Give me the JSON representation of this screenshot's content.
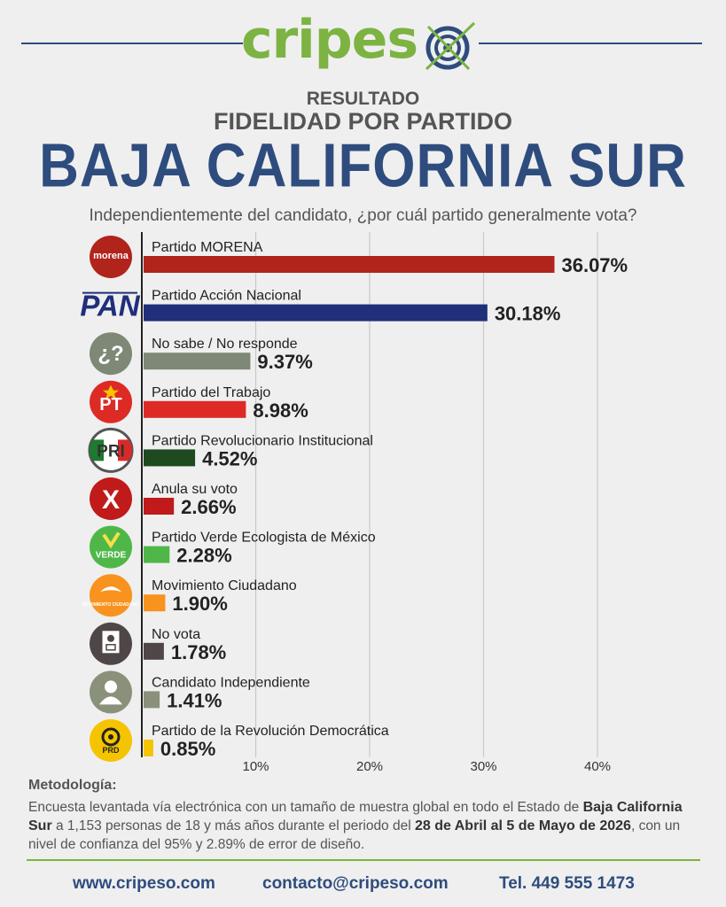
{
  "header": {
    "brand_a": "cripes",
    "brand_b": "o",
    "resultado": "RESULTADO",
    "subtitle": "FIDELIDAD POR PARTIDO",
    "state": "BAJA CALIFORNIA SUR",
    "question": "Independientemente del candidato, ¿por cuál partido generalmente vota?"
  },
  "chart_data": {
    "type": "bar",
    "orientation": "horizontal",
    "categories": [
      "Partido MORENA",
      "Partido Acción Nacional",
      "No sabe / No responde",
      "Partido del Trabajo",
      "Partido Revolucionario Institucional",
      "Anula su voto",
      "Partido Verde Ecologista de México",
      "Movimiento Ciudadano",
      "No vota",
      "Candidato Independiente",
      "Partido de la Revolución Democrática"
    ],
    "values": [
      36.07,
      30.18,
      9.37,
      8.98,
      4.52,
      2.66,
      2.28,
      1.9,
      1.78,
      1.41,
      0.85
    ],
    "value_labels": [
      "36.07%",
      "30.18%",
      "9.37%",
      "8.98%",
      "4.52%",
      "2.66%",
      "2.28%",
      "1.90%",
      "1.78%",
      "1.41%",
      "0.85%"
    ],
    "colors": [
      "#b0241c",
      "#1f2f7a",
      "#7d8877",
      "#dd2a25",
      "#1d4a1f",
      "#c01a1a",
      "#4fb748",
      "#f7931e",
      "#4f4647",
      "#89917a",
      "#f5c400"
    ],
    "xlim": [
      0,
      40
    ],
    "xticks": [
      10,
      20,
      30,
      40
    ],
    "xtick_labels": [
      "10%",
      "20%",
      "30%",
      "40%"
    ],
    "grid": true
  },
  "logos": [
    {
      "icon": "morena-logo-icon",
      "text": "morena",
      "color": "#b0241c"
    },
    {
      "icon": "pan-logo-icon",
      "text": "PAN",
      "color": "#1f2f7a"
    },
    {
      "icon": "question-logo-icon",
      "text": "¿?",
      "color": "#7d8877"
    },
    {
      "icon": "pt-logo-icon",
      "text": "PT",
      "color": "#dd2a25"
    },
    {
      "icon": "pri-logo-icon",
      "text": "PRI",
      "color": "#1d4a1f"
    },
    {
      "icon": "annul-logo-icon",
      "text": "X",
      "color": "#c01a1a"
    },
    {
      "icon": "verde-logo-icon",
      "text": "VERDE",
      "color": "#4fb748"
    },
    {
      "icon": "mc-logo-icon",
      "text": "MOVIMIENTO CIUDADANO",
      "color": "#f7931e"
    },
    {
      "icon": "ballot-logo-icon",
      "text": "",
      "color": "#4f4647"
    },
    {
      "icon": "person-logo-icon",
      "text": "",
      "color": "#89917a"
    },
    {
      "icon": "prd-logo-icon",
      "text": "PRD",
      "color": "#f5c400"
    }
  ],
  "methodology": {
    "title": "Metodología:",
    "p1": "Encuesta levantada vía electrónica con un tamaño de muestra global en todo el Estado de ",
    "b1": "Baja California Sur",
    "p2": " a 1,153 personas de 18 y más años durante el periodo del ",
    "b2": "28 de Abril al 5 de Mayo de 2026",
    "p3": ", con un nivel de confianza del 95% y 2.89% de error de diseño."
  },
  "footer": {
    "web": "www.cripeso.com",
    "email": "contacto@cripeso.com",
    "phone": "Tel. 449 555 1473"
  }
}
